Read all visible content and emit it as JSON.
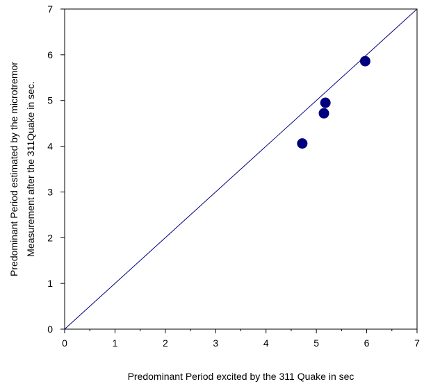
{
  "chart_data": {
    "type": "scatter",
    "xlabel": "Predominant Period excited by the 311 Quake in sec",
    "ylabel_lines": [
      "Predominant Period estimated by the microtremor",
      "Measurement after the 311Quake in sec."
    ],
    "xlim": [
      0,
      7
    ],
    "ylim": [
      0,
      7
    ],
    "x_ticks": [
      "0",
      "1",
      "2",
      "3",
      "4",
      "5",
      "6",
      "7"
    ],
    "y_ticks": [
      "0",
      "1",
      "2",
      "3",
      "4",
      "5",
      "6",
      "7"
    ],
    "grid": false,
    "reference_line": {
      "from": [
        0,
        0
      ],
      "to": [
        7,
        7
      ]
    },
    "points": [
      {
        "x": 4.72,
        "y": 4.06
      },
      {
        "x": 5.15,
        "y": 4.72
      },
      {
        "x": 5.18,
        "y": 4.95
      },
      {
        "x": 5.97,
        "y": 5.86
      }
    ],
    "colors": {
      "marker": "#00007f",
      "line": "#000080",
      "axis": "#000000"
    }
  }
}
